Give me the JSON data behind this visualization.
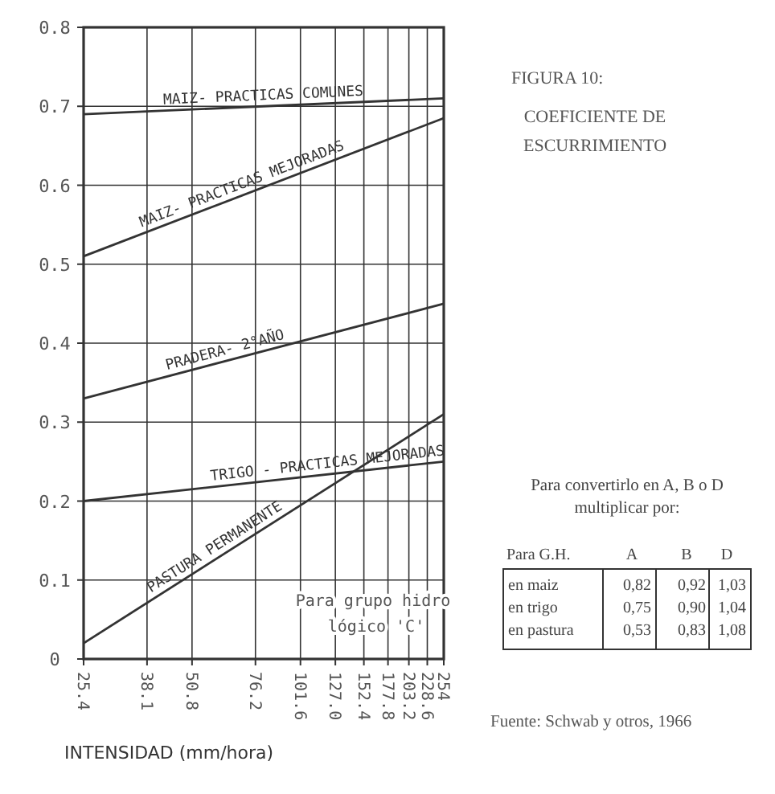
{
  "chart_data": [
    {
      "type": "line",
      "xlabel": "INTENSIDAD (mm/hora)",
      "log": "x",
      "grid": true,
      "legend": false,
      "marker": "none",
      "line_style": "solid",
      "x": [
        25.4,
        254
      ],
      "xlim": [
        25.4,
        254
      ],
      "xticks": [
        25.4,
        38.1,
        50.8,
        76.2,
        101.6,
        {
          "value": 127,
          "label": "127.0"
        },
        152.4,
        177.8,
        203.2,
        228.6,
        254
      ],
      "ylim": [
        0,
        0.8
      ],
      "yticks": [
        0,
        0.1,
        0.2,
        0.3,
        0.4,
        0.5,
        0.6,
        0.7,
        0.8
      ],
      "series": [
        {
          "name": "MAIZ- PRACTICAS COMUNES",
          "color": "#333333",
          "values": [
            0.69,
            0.71
          ]
        },
        {
          "name": "MAIZ- PRACTICAS MEJORADAS",
          "color": "#333333",
          "values": [
            0.51,
            0.685
          ]
        },
        {
          "name": "PRADERA- 2°AÑO",
          "color": "#333333",
          "values": [
            0.33,
            0.45
          ]
        },
        {
          "name": "TRIGO - PRACTICAS MEJORADAS",
          "color": "#333333",
          "values": [
            0.2,
            0.25
          ]
        },
        {
          "name": "PASTURA PERMANENTE",
          "color": "#333333",
          "values": [
            0.02,
            0.31
          ]
        }
      ],
      "annotations": [
        "Para grupo hidro lógico 'C'"
      ]
    },
    {
      "type": "other",
      "title": "FIGURA 10:",
      "subtitle": "COEFICIENTE DE ESCURRIMIENTO",
      "ylabel": "Para G.H.",
      "categories": [
        "A",
        "B",
        "D"
      ],
      "y_categories": [
        "en maiz",
        "en trigo",
        "en pastura"
      ],
      "cell_labels": [
        [
          "0,82",
          "0,92",
          "1,03"
        ],
        [
          "0,75",
          "0,90",
          "1,04"
        ],
        [
          "0,53",
          "0,83",
          "1,08"
        ]
      ],
      "annotations": [
        "Para convertirlo en A, B o D multiplicar por:",
        "Fuente: Schwab y otros, 1966"
      ]
    }
  ]
}
